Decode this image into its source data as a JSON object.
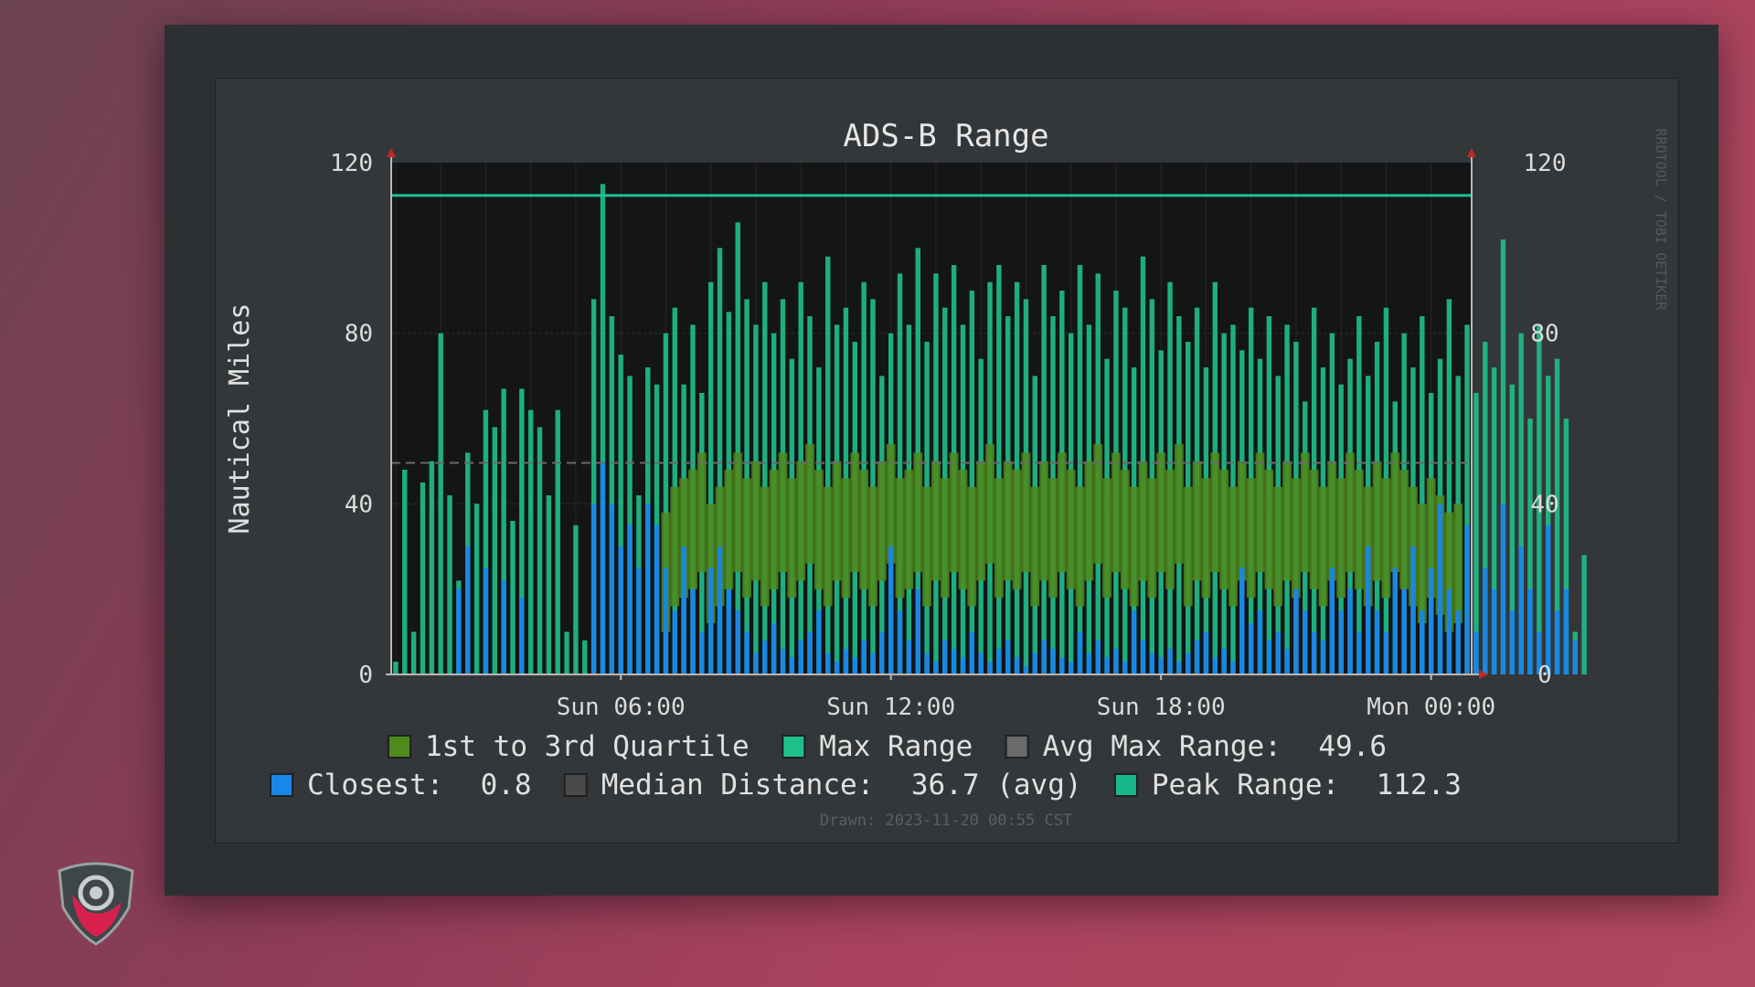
{
  "chart_data": {
    "type": "area",
    "title": "ADS-B Range",
    "ylabel": "Nautical Miles",
    "ylim": [
      0,
      120
    ],
    "y_ticks": [
      "0",
      "40",
      "80",
      "120"
    ],
    "x_ticks": [
      "Sun 06:00",
      "Sun 12:00",
      "Sun 18:00",
      "Mon 00:00"
    ],
    "x_tick_hours": [
      6,
      12,
      18,
      24
    ],
    "x_range_hours": [
      0.9,
      24.9
    ],
    "grid": true,
    "legend_placement": "bottom",
    "side_watermark": "RRDTOOL / TOBI OETIKER",
    "drawn_text": "Drawn: 2023-11-20 00:55 CST",
    "legend": {
      "row1": [
        {
          "label": "1st to 3rd Quartile",
          "value": "",
          "color": "#4f8a1c"
        },
        {
          "label": "Max Range",
          "value": "",
          "color": "#1fbf8a"
        },
        {
          "label": "Avg Max Range:",
          "value": "49.6",
          "color": "#6a6a6a"
        }
      ],
      "row2": [
        {
          "label": "Closest:",
          "value": "0.8",
          "color": "#1a86e8"
        },
        {
          "label": "Median Distance:",
          "value": "36.7 (avg)",
          "color": "#4a4a4a"
        },
        {
          "label": "Peak Range:",
          "value": "112.3",
          "color": "#18b88a"
        }
      ]
    },
    "colors": {
      "max_range": "#1fbf8a",
      "quartile": "#4f8a1c",
      "closest": "#1a86e8",
      "avg_line": "#6a6a6a",
      "peak_line": "#20c090"
    },
    "peak_range": 112.3,
    "avg_max_range": 49.6,
    "series_hours_start": 1.0,
    "series_hours_step": 0.2,
    "series": [
      {
        "name": "Max Range",
        "values": [
          3,
          48,
          10,
          45,
          50,
          80,
          42,
          22,
          52,
          40,
          62,
          58,
          67,
          36,
          67,
          62,
          58,
          42,
          62,
          10,
          35,
          8,
          88,
          115,
          84,
          75,
          70,
          42,
          72,
          68,
          80,
          86,
          68,
          82,
          66,
          92,
          100,
          85,
          106,
          88,
          82,
          92,
          80,
          88,
          74,
          92,
          84,
          72,
          98,
          82,
          86,
          78,
          92,
          88,
          70,
          80,
          94,
          82,
          100,
          78,
          94,
          86,
          96,
          82,
          90,
          74,
          92,
          96,
          84,
          92,
          88,
          70,
          96,
          84,
          90,
          80,
          96,
          82,
          94,
          74,
          90,
          86,
          72,
          98,
          88,
          76,
          92,
          84,
          78,
          86,
          72,
          92,
          80,
          82,
          76,
          86,
          74,
          84,
          70,
          82,
          78,
          64,
          86,
          72,
          80,
          68,
          74,
          84,
          70,
          78,
          86,
          64,
          80,
          72,
          84,
          66,
          74,
          88,
          70,
          82,
          66,
          78,
          72,
          102,
          68,
          80,
          60,
          82,
          70,
          74,
          60,
          10,
          28
        ]
      },
      {
        "name": "1st to 3rd Quartile",
        "values": [
          0,
          0,
          0,
          0,
          0,
          0,
          0,
          0,
          0,
          0,
          0,
          0,
          0,
          0,
          0,
          0,
          0,
          0,
          0,
          0,
          0,
          0,
          0,
          0,
          0,
          0,
          0,
          0,
          0,
          0,
          38,
          44,
          46,
          48,
          52,
          40,
          44,
          48,
          52,
          46,
          50,
          44,
          48,
          52,
          46,
          50,
          54,
          48,
          44,
          50,
          46,
          52,
          48,
          44,
          50,
          54,
          46,
          48,
          52,
          44,
          50,
          46,
          52,
          48,
          44,
          50,
          54,
          46,
          50,
          48,
          52,
          44,
          50,
          46,
          52,
          48,
          44,
          50,
          54,
          46,
          52,
          48,
          44,
          50,
          46,
          52,
          48,
          54,
          44,
          50,
          46,
          52,
          48,
          44,
          50,
          46,
          52,
          48,
          44,
          50,
          46,
          52,
          48,
          44,
          50,
          46,
          52,
          48,
          44,
          50,
          46,
          52,
          48,
          44,
          40,
          46,
          42,
          38,
          40,
          0,
          0,
          0,
          0,
          0,
          0,
          0,
          0,
          0,
          0,
          0,
          0,
          0,
          0
        ]
      },
      {
        "name": "Closest",
        "values": [
          0,
          0,
          0,
          0,
          0,
          0,
          0,
          20,
          30,
          0,
          25,
          0,
          22,
          0,
          18,
          0,
          0,
          0,
          0,
          0,
          0,
          0,
          40,
          50,
          40,
          30,
          35,
          25,
          40,
          35,
          25,
          15,
          30,
          20,
          10,
          25,
          30,
          20,
          15,
          10,
          5,
          8,
          12,
          6,
          4,
          8,
          10,
          15,
          5,
          3,
          6,
          4,
          8,
          5,
          10,
          30,
          15,
          8,
          20,
          5,
          3,
          8,
          6,
          4,
          10,
          5,
          3,
          6,
          8,
          4,
          2,
          5,
          8,
          6,
          4,
          3,
          10,
          5,
          8,
          4,
          6,
          3,
          15,
          8,
          5,
          4,
          6,
          3,
          5,
          8,
          10,
          4,
          6,
          3,
          25,
          12,
          15,
          8,
          10,
          6,
          20,
          15,
          10,
          8,
          25,
          15,
          20,
          10,
          30,
          15,
          10,
          25,
          20,
          30,
          15,
          25,
          40,
          20,
          15,
          35,
          10,
          25,
          20,
          40,
          15,
          30,
          20,
          10,
          35,
          15,
          20,
          8,
          0
        ]
      }
    ]
  }
}
